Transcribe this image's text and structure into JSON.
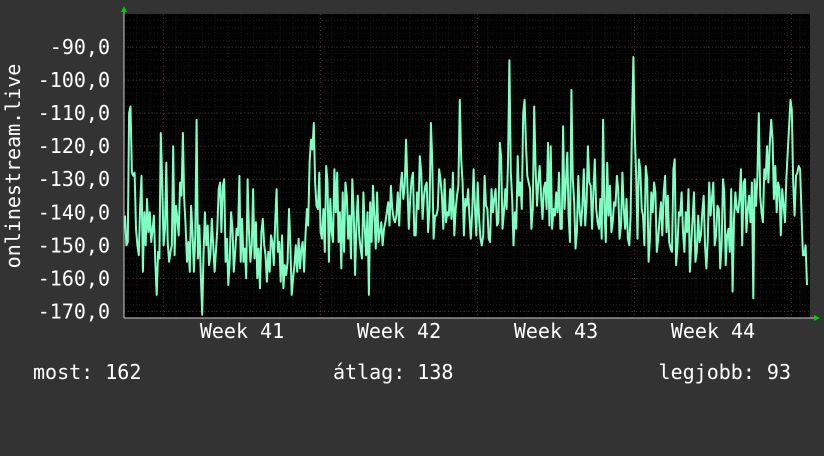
{
  "chart_data": {
    "type": "line",
    "title": "",
    "ylabel": "onlinestream.live",
    "xlabel": "",
    "ylim": [
      -172,
      -80
    ],
    "y_ticks": [
      "-90,0",
      "-100,0",
      "-110,0",
      "-120,0",
      "-130,0",
      "-140,0",
      "-150,0",
      "-160,0",
      "-170,0"
    ],
    "y_tick_values": [
      -90,
      -100,
      -110,
      -120,
      -130,
      -140,
      -150,
      -160,
      -170
    ],
    "x_ticks": [
      "Week 41",
      "Week 42",
      "Week 43",
      "Week 44"
    ],
    "grid": true,
    "line_color": "#7fffc4",
    "values": [
      -141,
      -150,
      -149,
      -110,
      -108,
      -128,
      -129,
      -128,
      -145,
      -150,
      -153,
      -138,
      -129,
      -158,
      -140,
      -150,
      -136,
      -146,
      -140,
      -149,
      -145,
      -141,
      -155,
      -165,
      -152,
      -154,
      -116,
      -131,
      -150,
      -145,
      -125,
      -149,
      -155,
      -152,
      -150,
      -120,
      -153,
      -138,
      -142,
      -147,
      -131,
      -135,
      -116,
      -136,
      -144,
      -155,
      -149,
      -158,
      -138,
      -146,
      -158,
      -147,
      -112,
      -154,
      -144,
      -159,
      -171,
      -153,
      -140,
      -150,
      -144,
      -156,
      -153,
      -142,
      -150,
      -158,
      -152,
      -145,
      -133,
      -131,
      -146,
      -132,
      -130,
      -155,
      -148,
      -162,
      -155,
      -140,
      -145,
      -158,
      -152,
      -145,
      -147,
      -129,
      -155,
      -142,
      -155,
      -151,
      -160,
      -130,
      -146,
      -155,
      -150,
      -133,
      -154,
      -143,
      -160,
      -151,
      -163,
      -146,
      -142,
      -150,
      -153,
      -161,
      -152,
      -158,
      -147,
      -149,
      -156,
      -143,
      -133,
      -152,
      -149,
      -161,
      -147,
      -163,
      -156,
      -159,
      -155,
      -139,
      -149,
      -165,
      -160,
      -156,
      -150,
      -158,
      -148,
      -157,
      -151,
      -149,
      -158,
      -147,
      -139,
      -144,
      -125,
      -118,
      -121,
      -113,
      -131,
      -138,
      -139,
      -128,
      -146,
      -148,
      -139,
      -152,
      -126,
      -131,
      -155,
      -136,
      -146,
      -149,
      -127,
      -140,
      -128,
      -149,
      -140,
      -157,
      -134,
      -152,
      -131,
      -135,
      -148,
      -141,
      -154,
      -130,
      -140,
      -159,
      -143,
      -135,
      -147,
      -151,
      -154,
      -134,
      -144,
      -153,
      -140,
      -165,
      -137,
      -149,
      -132,
      -141,
      -151,
      -134,
      -149,
      -146,
      -143,
      -150,
      -145,
      -143,
      -140,
      -137,
      -144,
      -132,
      -139,
      -142,
      -143,
      -141,
      -134,
      -144,
      -132,
      -128,
      -136,
      -132,
      -118,
      -132,
      -145,
      -136,
      -130,
      -128,
      -147,
      -147,
      -134,
      -139,
      -123,
      -128,
      -142,
      -135,
      -132,
      -131,
      -146,
      -139,
      -113,
      -124,
      -148,
      -141,
      -141,
      -139,
      -127,
      -130,
      -135,
      -145,
      -130,
      -143,
      -140,
      -141,
      -133,
      -142,
      -128,
      -147,
      -139,
      -135,
      -132,
      -106,
      -124,
      -131,
      -147,
      -136,
      -138,
      -133,
      -141,
      -148,
      -140,
      -127,
      -139,
      -147,
      -131,
      -142,
      -148,
      -150,
      -147,
      -129,
      -138,
      -139,
      -148,
      -149,
      -133,
      -140,
      -136,
      -133,
      -144,
      -143,
      -119,
      -123,
      -145,
      -140,
      -133,
      -139,
      -125,
      -94,
      -128,
      -136,
      -150,
      -140,
      -145,
      -123,
      -135,
      -131,
      -139,
      -110,
      -106,
      -119,
      -129,
      -131,
      -133,
      -145,
      -139,
      -108,
      -127,
      -138,
      -131,
      -126,
      -135,
      -142,
      -133,
      -131,
      -139,
      -119,
      -144,
      -120,
      -145,
      -139,
      -141,
      -134,
      -140,
      -128,
      -145,
      -145,
      -114,
      -139,
      -131,
      -122,
      -141,
      -149,
      -103,
      -130,
      -137,
      -151,
      -146,
      -129,
      -140,
      -144,
      -138,
      -127,
      -144,
      -137,
      -120,
      -131,
      -132,
      -145,
      -134,
      -124,
      -139,
      -143,
      -145,
      -136,
      -148,
      -112,
      -140,
      -149,
      -125,
      -141,
      -132,
      -146,
      -143,
      -137,
      -138,
      -129,
      -133,
      -148,
      -144,
      -128,
      -139,
      -145,
      -136,
      -148,
      -150,
      -141,
      -113,
      -93,
      -117,
      -129,
      -148,
      -124,
      -127,
      -139,
      -141,
      -150,
      -126,
      -130,
      -155,
      -148,
      -134,
      -140,
      -131,
      -134,
      -152,
      -148,
      -142,
      -137,
      -147,
      -134,
      -129,
      -146,
      -135,
      -149,
      -151,
      -152,
      -127,
      -124,
      -156,
      -150,
      -140,
      -141,
      -134,
      -146,
      -152,
      -140,
      -146,
      -133,
      -158,
      -149,
      -142,
      -134,
      -155,
      -152,
      -141,
      -149,
      -147,
      -140,
      -135,
      -150,
      -157,
      -148,
      -131,
      -141,
      -136,
      -131,
      -150,
      -147,
      -138,
      -139,
      -157,
      -150,
      -130,
      -134,
      -156,
      -147,
      -145,
      -152,
      -133,
      -164,
      -142,
      -134,
      -139,
      -140,
      -136,
      -127,
      -150,
      -131,
      -130,
      -146,
      -139,
      -135,
      -143,
      -131,
      -166,
      -130,
      -138,
      -129,
      -110,
      -135,
      -140,
      -143,
      -127,
      -130,
      -120,
      -131,
      -119,
      -112,
      -118,
      -136,
      -126,
      -140,
      -131,
      -133,
      -147,
      -133,
      -138,
      -143,
      -130,
      -122,
      -114,
      -106,
      -109,
      -131,
      -141,
      -129,
      -128,
      -126,
      -127,
      -140,
      -153,
      -153,
      -150,
      -162
    ]
  },
  "footer": {
    "now": "most: 162",
    "avg": "átlag: 138",
    "best": "legjobb: 93"
  },
  "colors": {
    "background": "#333333",
    "plot_background": "#000000",
    "grid_minor": "#1e1e1e",
    "grid_major": "#5a2c2c",
    "axis_arrow": "#00cc00",
    "line": "#7fffc4"
  }
}
